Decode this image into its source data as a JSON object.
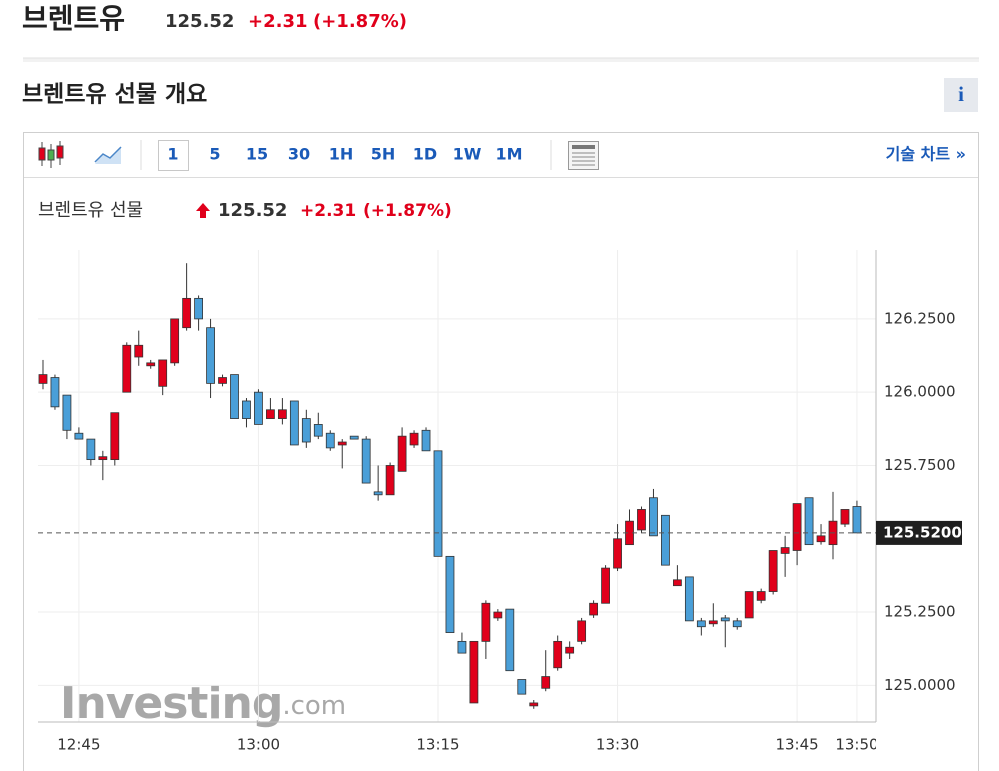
{
  "header": {
    "title": "브렌트유",
    "price": "125.52",
    "change": "+2.31",
    "change_pct": "(+1.87%)"
  },
  "section_title": "브렌트유 선물 개요",
  "info_icon": "i",
  "toolbar": {
    "intervals": [
      "1",
      "5",
      "15",
      "30",
      "1H",
      "5H",
      "1D",
      "1W",
      "1M"
    ],
    "technical_chart_link": "기술 차트 »"
  },
  "chart_data": {
    "type": "candlestick",
    "title": "브렌트유 선물",
    "watermark": {
      "brand": "Investing",
      "suffix": ".com"
    },
    "up_color": "#e0001b",
    "down_color": "#4a9fd8",
    "categories": [
      null,
      null,
      null,
      "12:45",
      null,
      null,
      null,
      null,
      null,
      null,
      null,
      null,
      null,
      null,
      null,
      null,
      null,
      null,
      "13:00",
      null,
      null,
      null,
      null,
      null,
      null,
      null,
      null,
      null,
      null,
      null,
      null,
      null,
      null,
      "13:15",
      null,
      null,
      null,
      null,
      null,
      null,
      null,
      null,
      null,
      null,
      null,
      null,
      null,
      null,
      "13:30",
      null,
      null,
      null,
      null,
      null,
      null,
      null,
      null,
      null,
      null,
      null,
      null,
      null,
      null,
      "13:45",
      null,
      null,
      null,
      null,
      "13:50"
    ],
    "open": [
      126.03,
      126.05,
      125.99,
      125.86,
      125.84,
      125.77,
      125.77,
      126.0,
      126.12,
      126.09,
      126.02,
      126.1,
      126.22,
      126.32,
      126.22,
      126.03,
      126.06,
      125.97,
      126.0,
      125.91,
      125.91,
      125.97,
      125.91,
      125.89,
      125.86,
      125.82,
      125.85,
      125.84,
      125.66,
      125.65,
      125.73,
      125.82,
      125.87,
      125.8,
      125.44,
      125.15,
      124.94,
      125.15,
      125.23,
      125.26,
      125.02,
      124.93,
      124.99,
      125.06,
      125.11,
      125.15,
      125.24,
      125.28,
      125.4,
      125.48,
      125.53,
      125.64,
      125.58,
      125.34,
      125.37,
      125.22,
      125.21,
      125.23,
      125.22,
      125.23,
      125.29,
      125.32,
      125.45,
      125.46,
      125.64,
      125.49,
      125.48,
      125.55,
      125.61
    ],
    "high": [
      126.11,
      126.06,
      125.99,
      125.88,
      125.84,
      125.8,
      125.93,
      126.17,
      126.21,
      126.11,
      126.11,
      126.25,
      126.44,
      126.33,
      126.25,
      126.06,
      126.06,
      125.98,
      126.01,
      125.98,
      125.98,
      125.97,
      125.94,
      125.93,
      125.87,
      125.84,
      125.85,
      125.85,
      125.75,
      125.76,
      125.88,
      125.87,
      125.88,
      125.8,
      125.44,
      125.18,
      125.15,
      125.29,
      125.26,
      125.26,
      125.02,
      124.95,
      125.12,
      125.17,
      125.15,
      125.23,
      125.29,
      125.41,
      125.55,
      125.6,
      125.61,
      125.67,
      125.58,
      125.41,
      125.37,
      125.23,
      125.28,
      125.24,
      125.23,
      125.32,
      125.33,
      125.46,
      125.51,
      125.62,
      125.64,
      125.55,
      125.66,
      125.6,
      125.63
    ],
    "low": [
      126.01,
      125.94,
      125.84,
      125.84,
      125.75,
      125.7,
      125.75,
      126.0,
      126.09,
      126.08,
      125.99,
      126.09,
      126.21,
      126.21,
      125.98,
      126.02,
      125.91,
      125.88,
      125.89,
      125.91,
      125.89,
      125.82,
      125.81,
      125.84,
      125.8,
      125.74,
      125.84,
      125.69,
      125.63,
      125.65,
      125.73,
      125.81,
      125.8,
      125.44,
      125.18,
      125.11,
      124.94,
      125.09,
      125.22,
      125.05,
      124.97,
      124.92,
      124.98,
      125.05,
      125.09,
      125.14,
      125.23,
      125.28,
      125.39,
      125.48,
      125.52,
      125.51,
      125.41,
      125.34,
      125.22,
      125.17,
      125.2,
      125.13,
      125.19,
      125.23,
      125.28,
      125.31,
      125.37,
      125.41,
      125.48,
      125.48,
      125.43,
      125.54,
      125.52
    ],
    "close": [
      126.06,
      125.95,
      125.87,
      125.84,
      125.77,
      125.78,
      125.93,
      126.16,
      126.16,
      126.1,
      126.11,
      126.25,
      126.32,
      126.25,
      126.03,
      126.05,
      125.91,
      125.91,
      125.89,
      125.94,
      125.94,
      125.82,
      125.83,
      125.85,
      125.81,
      125.83,
      125.84,
      125.69,
      125.65,
      125.75,
      125.85,
      125.86,
      125.8,
      125.44,
      125.18,
      125.11,
      125.15,
      125.28,
      125.25,
      125.05,
      124.97,
      124.94,
      125.03,
      125.15,
      125.13,
      125.22,
      125.28,
      125.4,
      125.5,
      125.56,
      125.6,
      125.51,
      125.41,
      125.36,
      125.22,
      125.2,
      125.22,
      125.22,
      125.2,
      125.32,
      125.32,
      125.46,
      125.47,
      125.62,
      125.48,
      125.51,
      125.56,
      125.6,
      125.52
    ],
    "ylim": [
      124.875,
      126.485
    ],
    "yticks": [
      {
        "value": 125,
        "label": "125.0000"
      },
      {
        "value": 125.25,
        "label": "125.2500"
      },
      {
        "value": 125.75,
        "label": "125.7500"
      },
      {
        "value": 126,
        "label": "126.0000"
      },
      {
        "value": 126.25,
        "label": "126.2500"
      }
    ],
    "last": {
      "value": 125.52,
      "label": "125.5200"
    },
    "grid": true
  }
}
